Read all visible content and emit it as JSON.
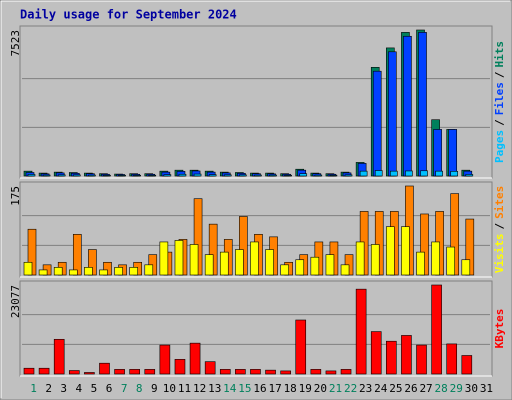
{
  "title": "Daily usage for September 2024",
  "legend_separator": "/",
  "chart_data": [
    {
      "type": "bar",
      "series": [
        {
          "name": "Hits",
          "color": "#00805c",
          "values": [
            250,
            150,
            200,
            180,
            150,
            120,
            100,
            120,
            120,
            250,
            300,
            300,
            250,
            200,
            180,
            150,
            150,
            120,
            350,
            150,
            120,
            200,
            700,
            5600,
            6600,
            7400,
            7523,
            2900,
            2400,
            300,
            0
          ]
        },
        {
          "name": "Files",
          "color": "#0040ff",
          "values": [
            180,
            110,
            160,
            140,
            120,
            90,
            80,
            90,
            90,
            200,
            240,
            260,
            200,
            160,
            140,
            120,
            110,
            90,
            300,
            120,
            90,
            160,
            650,
            5400,
            6400,
            7200,
            7400,
            2400,
            2400,
            250,
            0
          ]
        },
        {
          "name": "Pages",
          "color": "#00c0ff",
          "values": [
            80,
            50,
            60,
            60,
            50,
            40,
            40,
            40,
            40,
            70,
            90,
            100,
            70,
            60,
            60,
            50,
            50,
            40,
            120,
            50,
            40,
            60,
            250,
            280,
            250,
            260,
            270,
            250,
            240,
            80,
            0
          ]
        }
      ],
      "ylim": [
        0,
        7523
      ],
      "yticks": [
        7523
      ]
    },
    {
      "type": "bar",
      "series": [
        {
          "name": "Sites",
          "color": "#ff8000",
          "values": [
            90,
            20,
            25,
            80,
            50,
            25,
            20,
            25,
            40,
            45,
            70,
            150,
            100,
            70,
            115,
            80,
            75,
            25,
            40,
            65,
            65,
            40,
            125,
            125,
            125,
            175,
            120,
            125,
            160,
            110,
            0
          ]
        },
        {
          "name": "Visits",
          "color": "#ffff00",
          "values": [
            25,
            10,
            15,
            10,
            15,
            10,
            15,
            15,
            20,
            65,
            68,
            60,
            40,
            45,
            50,
            65,
            50,
            20,
            30,
            35,
            40,
            20,
            65,
            60,
            95,
            95,
            45,
            65,
            55,
            30,
            0
          ]
        }
      ],
      "ylim": [
        0,
        175
      ],
      "yticks": [
        175
      ]
    },
    {
      "type": "bar",
      "categories": [
        "1",
        "2",
        "3",
        "4",
        "5",
        "6",
        "7",
        "8",
        "9",
        "10",
        "11",
        "12",
        "13",
        "14",
        "15",
        "16",
        "17",
        "18",
        "19",
        "20",
        "21",
        "22",
        "23",
        "24",
        "25",
        "26",
        "27",
        "28",
        "29",
        "30",
        "31"
      ],
      "category_colors": [
        "#00805c",
        "#000000",
        "#000000",
        "#000000",
        "#000000",
        "#000000",
        "#00805c",
        "#00805c",
        "#000000",
        "#000000",
        "#000000",
        "#000000",
        "#000000",
        "#00805c",
        "#00805c",
        "#000000",
        "#000000",
        "#000000",
        "#000000",
        "#000000",
        "#00805c",
        "#00805c",
        "#000000",
        "#000000",
        "#000000",
        "#000000",
        "#000000",
        "#00805c",
        "#00805c",
        "#000000",
        "#000000"
      ],
      "series": [
        {
          "name": "KBytes",
          "color": "#ff0000",
          "values": [
            1500,
            1500,
            9000,
            900,
            400,
            2800,
            1200,
            1200,
            1200,
            7500,
            3800,
            8000,
            3200,
            1200,
            1200,
            1200,
            1000,
            800,
            14000,
            1200,
            800,
            1200,
            22000,
            11000,
            8500,
            10000,
            7500,
            23077,
            7800,
            4800,
            0
          ]
        }
      ],
      "ylim": [
        0,
        23077
      ],
      "yticks": [
        23077
      ]
    }
  ]
}
